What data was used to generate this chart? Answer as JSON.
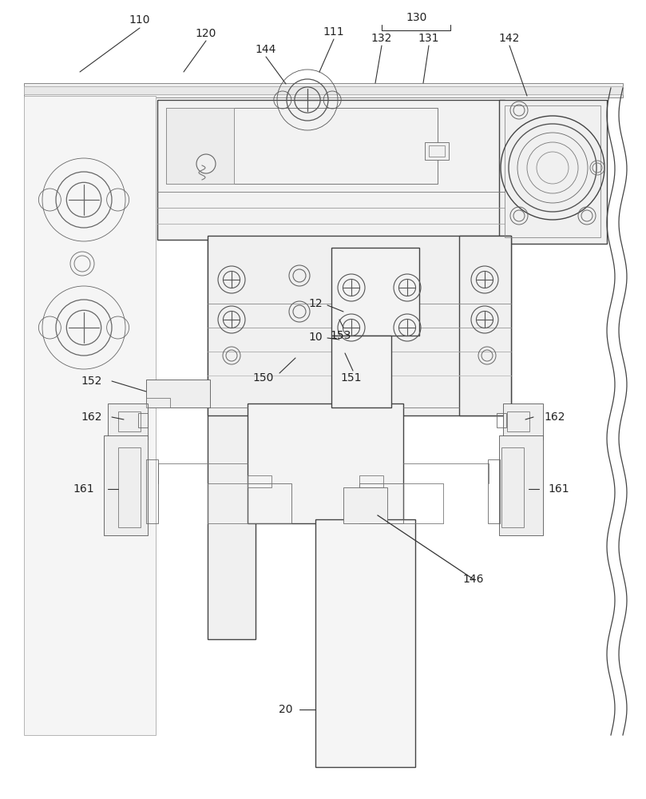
{
  "bg_color": "#ffffff",
  "lc": "#555555",
  "lc_dark": "#333333",
  "lc_light": "#888888",
  "lw": 1.0,
  "lt": 0.6,
  "lthk": 1.5
}
